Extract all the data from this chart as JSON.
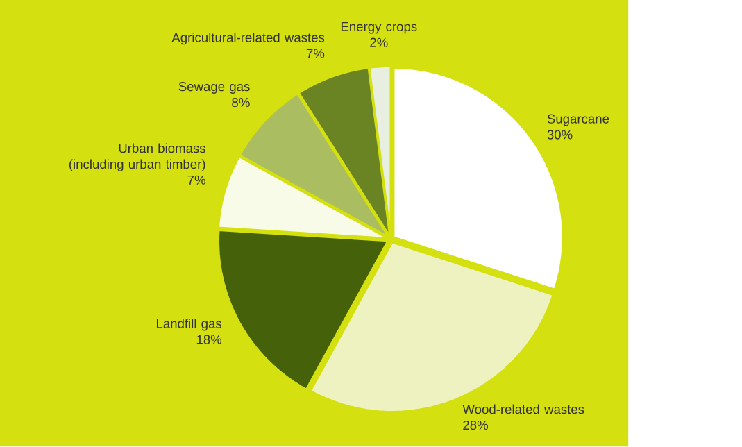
{
  "chart_data": {
    "type": "pie",
    "categories": [
      "Sugarcane",
      "Wood-related wastes",
      "Landfill gas",
      "Urban biomass (including urban timber)",
      "Sewage gas",
      "Agricultural-related wastes",
      "Energy crops"
    ],
    "values": [
      30,
      28,
      18,
      7,
      8,
      7,
      2
    ],
    "value_labels": [
      "30%",
      "28%",
      "18%",
      "7%",
      "8%",
      "7%",
      "2%"
    ],
    "colors": [
      "#ffffff",
      "#eef2c0",
      "#45620a",
      "#f8fbe8",
      "#aabd60",
      "#6a8424",
      "#e8eee0"
    ]
  }
}
